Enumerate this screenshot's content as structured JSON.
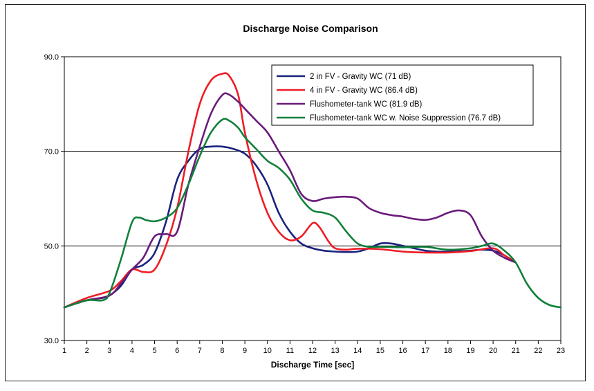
{
  "chart_data": {
    "type": "line",
    "title": "Discharge Noise Comparison",
    "xlabel": "Discharge Time [sec]",
    "ylabel": "",
    "xlim": [
      1,
      23
    ],
    "ylim": [
      30,
      90
    ],
    "x_ticks": [
      1,
      2,
      3,
      4,
      5,
      6,
      7,
      8,
      9,
      10,
      11,
      12,
      13,
      14,
      15,
      16,
      17,
      18,
      19,
      20,
      21,
      22,
      23
    ],
    "y_ticks": [
      30,
      50,
      70,
      90
    ],
    "y_tick_labels": [
      "30.0",
      "50.0",
      "70.0",
      "90.0"
    ],
    "gridlines": "horizontal at 50 and 70",
    "legend_position": "top-right",
    "series": [
      {
        "name": "2 in FV - Gravity WC  (71 dB)",
        "color": "#1a237e",
        "x": [
          1,
          2,
          2.7,
          3,
          3.5,
          4,
          4.5,
          5,
          5.5,
          6,
          6.5,
          7,
          7.5,
          8,
          8.5,
          9,
          9.5,
          10,
          10.5,
          11,
          11.5,
          12,
          12.5,
          13,
          13.5,
          14,
          14.5,
          15,
          15.5,
          16,
          16.5,
          17,
          17.5,
          18,
          18.5,
          19,
          19.5,
          20,
          20.5,
          21
        ],
        "y": [
          37,
          38.5,
          39,
          39.5,
          41.5,
          45,
          46,
          48.5,
          55,
          64,
          68,
          70.5,
          71,
          71,
          70.5,
          69.5,
          67,
          63,
          57,
          53,
          50.5,
          49.5,
          49,
          48.8,
          48.7,
          48.8,
          49.5,
          50.5,
          50.5,
          50,
          49.5,
          49,
          48.8,
          48.8,
          48.9,
          49,
          49.2,
          49,
          48,
          46.5
        ]
      },
      {
        "name": "4 in FV - Gravity WC (86.4 dB)",
        "color": "#ee1c25",
        "x": [
          1,
          2,
          3,
          3.5,
          4,
          4.5,
          5,
          5.5,
          6,
          6.5,
          7,
          7.5,
          8,
          8.3,
          8.7,
          9,
          9.5,
          10,
          10.5,
          11,
          11.5,
          12,
          12.3,
          12.7,
          13,
          13.5,
          14,
          15,
          16,
          17,
          18,
          19,
          20,
          20.5,
          21
        ],
        "y": [
          37,
          39,
          40.5,
          42.5,
          45,
          44.5,
          45,
          50,
          58,
          70,
          80,
          85,
          86.4,
          86,
          82,
          74,
          64,
          57,
          53,
          51.2,
          52,
          54.8,
          54,
          51,
          49.5,
          49.2,
          49.4,
          49.3,
          48.8,
          48.6,
          48.6,
          48.9,
          49.5,
          48,
          46.5
        ]
      },
      {
        "name": "Flushometer-tank WC (81.9 dB)",
        "color": "#6a1b7a",
        "x": [
          1,
          2,
          3,
          3.5,
          4,
          4.5,
          5,
          5.5,
          6,
          6.5,
          7,
          7.5,
          8,
          8.3,
          8.7,
          9,
          9.5,
          10,
          10.5,
          11,
          11.5,
          12,
          12.5,
          13,
          13.5,
          14,
          14.5,
          15,
          15.5,
          16,
          16.5,
          17,
          17.5,
          18,
          18.5,
          19,
          19.5,
          20,
          20.5,
          21
        ],
        "y": [
          37,
          38.5,
          39.5,
          42,
          45,
          47.5,
          52,
          52.5,
          53,
          63,
          71,
          78,
          81.9,
          82,
          80.5,
          79,
          76.5,
          74,
          70,
          66,
          61,
          59.5,
          60,
          60.3,
          60.4,
          60,
          58,
          57,
          56.5,
          56.2,
          55.7,
          55.5,
          56,
          57,
          57.5,
          56.5,
          52,
          49,
          47.5,
          46.5
        ]
      },
      {
        "name": "Flushometer-tank WC w. Noise Suppression (76.7 dB)",
        "color": "#12803b",
        "x": [
          1,
          2,
          2.7,
          3,
          3.5,
          4,
          4.3,
          4.6,
          5,
          5.5,
          6,
          6.5,
          7,
          7.5,
          8,
          8.3,
          8.7,
          9,
          9.5,
          10,
          10.5,
          11,
          11.5,
          12,
          12.5,
          13,
          13.5,
          14,
          14.5,
          15,
          16,
          17,
          18,
          19,
          19.5,
          20,
          20.5,
          21,
          21.5,
          22,
          22.5,
          23
        ],
        "y": [
          37,
          38.5,
          38.5,
          40,
          47,
          55,
          56,
          55.5,
          55.2,
          56,
          58,
          63,
          69,
          74,
          76.7,
          76.5,
          75,
          73,
          70.5,
          68,
          66.5,
          64,
          60,
          57.5,
          57,
          56,
          53,
          50.5,
          49.8,
          49.8,
          49.7,
          49.8,
          49.2,
          49.5,
          50,
          50.5,
          49,
          46.5,
          42,
          39,
          37.5,
          37
        ]
      }
    ]
  }
}
